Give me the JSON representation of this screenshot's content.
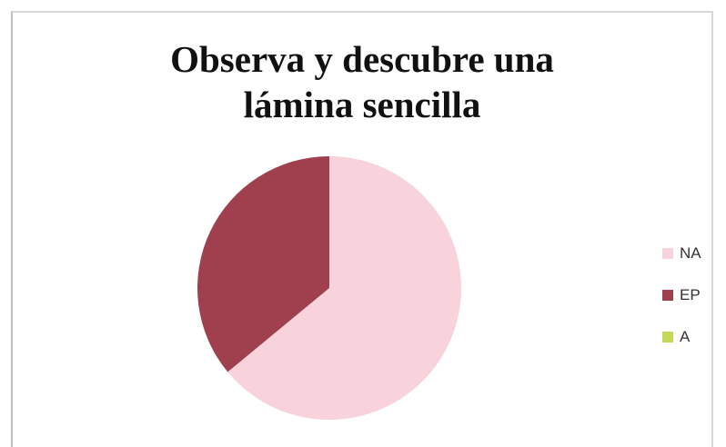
{
  "chart_data": {
    "type": "pie",
    "title": "Observa y descubre una\nlámina sencilla",
    "legend_position": "right",
    "series": [
      {
        "label": "NA",
        "value": 64,
        "color": "#f8d3dc"
      },
      {
        "label": "EP",
        "value": 36,
        "color": "#a0404e"
      },
      {
        "label": "A",
        "value": 0,
        "color": "#c6d85a"
      }
    ]
  }
}
